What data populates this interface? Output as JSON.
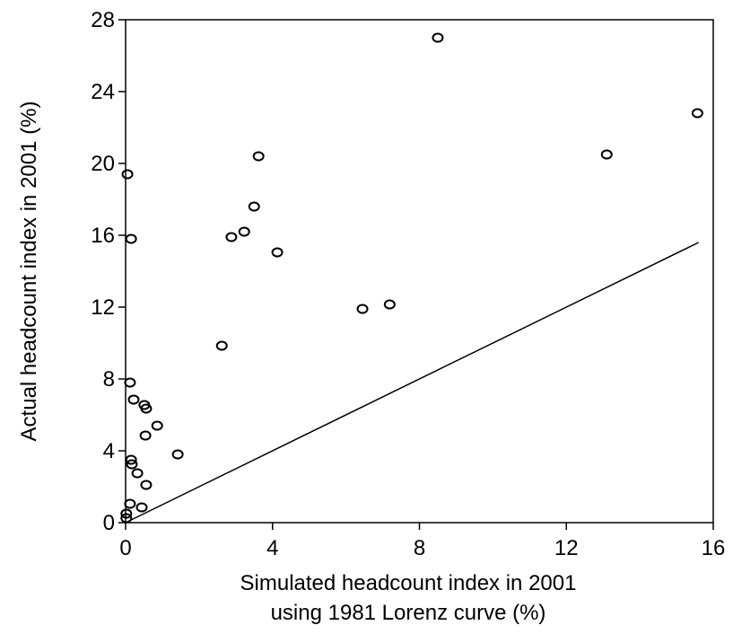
{
  "chart_data": {
    "type": "scatter",
    "x_label": [
      "Simulated headcount index in 2001",
      "using 1981 Lorenz curve (%)"
    ],
    "y_label": "Actual headcount index in 2001 (%)",
    "color": "#000000",
    "xlim": [
      0,
      16
    ],
    "ylim": [
      0,
      28
    ],
    "xticks": [
      0,
      4,
      8,
      12,
      16
    ],
    "yticks": [
      0,
      4,
      8,
      12,
      16,
      20,
      24,
      28
    ],
    "x": [
      8.5,
      15.57,
      13.1,
      0.05,
      3.62,
      3.5,
      3.23,
      2.88,
      4.13,
      0.15,
      6.45,
      7.19,
      2.62,
      0.12,
      0.22,
      0.51,
      0.56,
      0.86,
      0.54,
      1.42,
      0.15,
      0.17,
      0.32,
      0.56,
      0.12,
      0.44,
      0.02,
      0.02
    ],
    "y": [
      27.0,
      22.8,
      20.5,
      19.4,
      20.4,
      17.6,
      16.2,
      15.9,
      15.05,
      15.8,
      11.9,
      12.15,
      9.85,
      7.8,
      6.85,
      6.55,
      6.35,
      5.4,
      4.85,
      3.8,
      3.5,
      3.25,
      2.75,
      2.1,
      1.05,
      0.85,
      0.5,
      0.25
    ],
    "reference_line": {
      "x": [
        0,
        15.6
      ],
      "y": [
        0,
        15.6
      ]
    }
  }
}
